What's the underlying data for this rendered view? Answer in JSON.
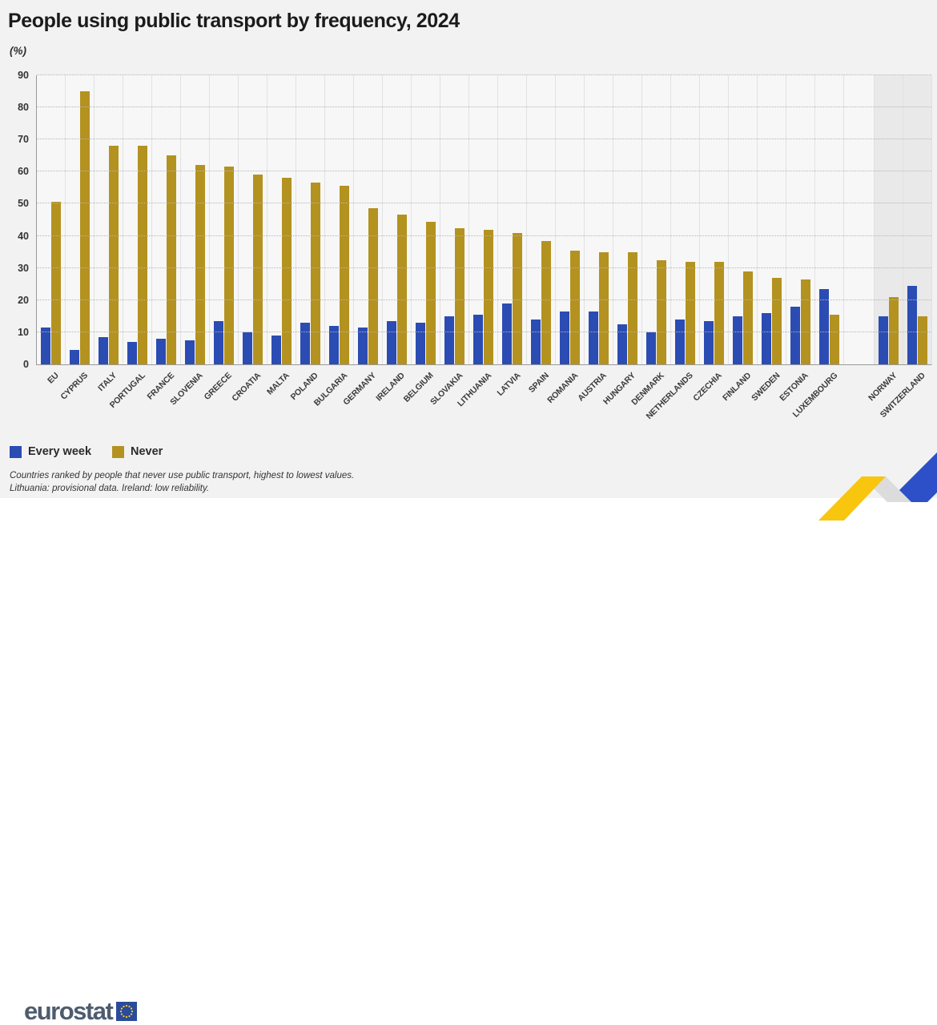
{
  "title": "People using public transport by frequency, 2024",
  "unit_label": "(%)",
  "legend": [
    {
      "label": "Every week",
      "color": "#2b4cb3"
    },
    {
      "label": "Never",
      "color": "#b39220"
    }
  ],
  "footnotes": [
    "Countries ranked by people that never use public transport, highest to lowest values.",
    "Lithuania: provisional data. Ireland: low reliability."
  ],
  "logo": {
    "text": "eurostat"
  },
  "colors": {
    "every_week_blue": "#2b4cb3",
    "never_gold": "#b39220",
    "efta_shading": "#e9e9e9",
    "ribbon_yellow": "#f8c50f",
    "ribbon_blue": "#2d50c8",
    "ribbon_fold_gray": "#dcdcdc"
  },
  "chart_data": {
    "type": "bar",
    "title": "People using public transport by frequency, 2024",
    "ylabel": "(%)",
    "xlabel": "",
    "ylim": [
      0,
      90
    ],
    "yticks": [
      0,
      10,
      20,
      30,
      40,
      50,
      60,
      70,
      80,
      90
    ],
    "grid": "horizontal-dotted",
    "legend_position": "bottom-left",
    "categories": [
      {
        "label": "EU",
        "group": "eu-aggregate"
      },
      {
        "label": "CYPRUS",
        "group": "member"
      },
      {
        "label": "ITALY",
        "group": "member"
      },
      {
        "label": "PORTUGAL",
        "group": "member"
      },
      {
        "label": "FRANCE",
        "group": "member"
      },
      {
        "label": "SLOVENIA",
        "group": "member"
      },
      {
        "label": "GREECE",
        "group": "member"
      },
      {
        "label": "CROATIA",
        "group": "member"
      },
      {
        "label": "MALTA",
        "group": "member"
      },
      {
        "label": "POLAND",
        "group": "member"
      },
      {
        "label": "BULGARIA",
        "group": "member"
      },
      {
        "label": "GERMANY",
        "group": "member"
      },
      {
        "label": "IRELAND",
        "group": "member"
      },
      {
        "label": "BELGIUM",
        "group": "member"
      },
      {
        "label": "SLOVAKIA",
        "group": "member"
      },
      {
        "label": "LITHUANIA",
        "group": "member"
      },
      {
        "label": "LATVIA",
        "group": "member"
      },
      {
        "label": "SPAIN",
        "group": "member"
      },
      {
        "label": "ROMANIA",
        "group": "member"
      },
      {
        "label": "AUSTRIA",
        "group": "member"
      },
      {
        "label": "HUNGARY",
        "group": "member"
      },
      {
        "label": "DENMARK",
        "group": "member"
      },
      {
        "label": "NETHERLANDS",
        "group": "member"
      },
      {
        "label": "CZECHIA",
        "group": "member"
      },
      {
        "label": "FINLAND",
        "group": "member"
      },
      {
        "label": "SWEDEN",
        "group": "member"
      },
      {
        "label": "ESTONIA",
        "group": "member"
      },
      {
        "label": "LUXEMBOURG",
        "group": "member"
      },
      {
        "label": "NORWAY",
        "group": "efta"
      },
      {
        "label": "SWITZERLAND",
        "group": "efta"
      }
    ],
    "series": [
      {
        "name": "Every week",
        "color": "#2b4cb3",
        "values": [
          11.5,
          4.5,
          8.5,
          7,
          8,
          7.5,
          13.5,
          10,
          9,
          13,
          12,
          11.5,
          13.5,
          13,
          15,
          15.5,
          19,
          14,
          16.5,
          16.5,
          12.5,
          10,
          14,
          13.5,
          15,
          16,
          18,
          23.5,
          15,
          24.5
        ]
      },
      {
        "name": "Never",
        "color": "#b39220",
        "values": [
          50.5,
          85,
          68,
          68,
          65,
          62,
          61.5,
          59,
          58,
          56.5,
          55.5,
          48.5,
          46.5,
          44.5,
          42.5,
          42,
          41,
          38.5,
          35.5,
          35,
          35,
          32.5,
          32,
          32,
          29,
          27,
          26.5,
          15.5,
          21,
          15
        ]
      }
    ],
    "layout_notes": "EU bar pair shown first, separated from ranked member states; Norway and Switzerland shown at right on shaded background after a gap."
  }
}
